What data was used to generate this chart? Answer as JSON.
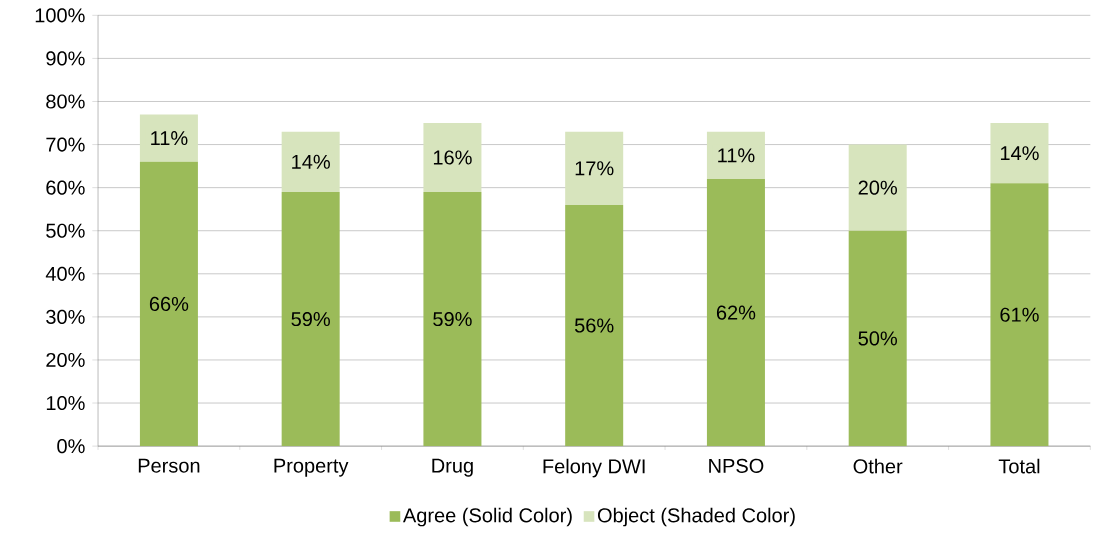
{
  "chart_data": {
    "type": "bar",
    "stacked": true,
    "categories": [
      "Person",
      "Property",
      "Drug",
      "Felony DWI",
      "NPSO",
      "Other",
      "Total"
    ],
    "series": [
      {
        "name": "Agree (Solid Color)",
        "color": "#9bbb59",
        "values": [
          66,
          59,
          59,
          56,
          62,
          50,
          61
        ],
        "value_labels": [
          "66%",
          "59%",
          "59%",
          "56%",
          "62%",
          "50%",
          "61%"
        ]
      },
      {
        "name": "Object (Shaded Color)",
        "color": "#d7e4bd",
        "values": [
          11,
          14,
          16,
          17,
          11,
          20,
          14
        ],
        "value_labels": [
          "11%",
          "14%",
          "16%",
          "17%",
          "11%",
          "20%",
          "14%"
        ]
      }
    ],
    "ylim": [
      0,
      100
    ],
    "yticks": [
      {
        "value": 0,
        "label": "0%"
      },
      {
        "value": 10,
        "label": "10%"
      },
      {
        "value": 20,
        "label": "20%"
      },
      {
        "value": 30,
        "label": "30%"
      },
      {
        "value": 40,
        "label": "40%"
      },
      {
        "value": 50,
        "label": "50%"
      },
      {
        "value": 60,
        "label": "60%"
      },
      {
        "value": 70,
        "label": "70%"
      },
      {
        "value": 80,
        "label": "80%"
      },
      {
        "value": 90,
        "label": "90%"
      },
      {
        "value": 100,
        "label": "100%"
      }
    ],
    "grid": "y",
    "legend": "bottom"
  }
}
